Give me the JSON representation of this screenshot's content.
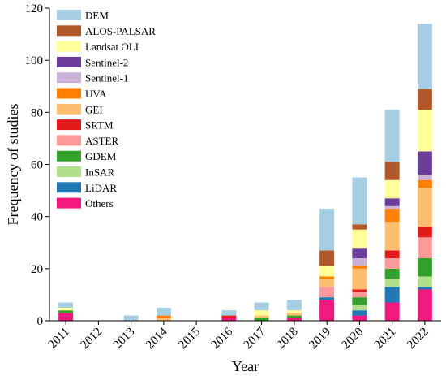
{
  "chart_data": {
    "type": "bar",
    "stacked": true,
    "xlabel": "Year",
    "ylabel": "Frequency of studies",
    "ylim": [
      0,
      120
    ],
    "yticks": [
      0,
      20,
      40,
      60,
      80,
      100,
      120
    ],
    "categories": [
      "2011",
      "2012",
      "2013",
      "2014",
      "2015",
      "2016",
      "2017",
      "2018",
      "2019",
      "2020",
      "2021",
      "2022"
    ],
    "legend_position": "top-left",
    "series": [
      {
        "name": "Others",
        "color": "#f2187d",
        "values": [
          3,
          0,
          0,
          0,
          0,
          1,
          0,
          1,
          8,
          2,
          7,
          12
        ]
      },
      {
        "name": "LiDAR",
        "color": "#1f78b4",
        "values": [
          0,
          0,
          0,
          0,
          0,
          0,
          0,
          0,
          1,
          2,
          6,
          1
        ]
      },
      {
        "name": "InSAR",
        "color": "#b2df8a",
        "values": [
          0,
          0,
          0,
          0,
          0,
          0,
          0,
          0,
          0,
          2,
          3,
          4
        ]
      },
      {
        "name": "GDEM",
        "color": "#33a02c",
        "values": [
          1,
          0,
          0,
          0,
          0,
          0,
          1,
          1,
          0,
          3,
          4,
          7
        ]
      },
      {
        "name": "ASTER",
        "color": "#fb9a99",
        "values": [
          0,
          0,
          0,
          0,
          0,
          0,
          0,
          0,
          4,
          2,
          4,
          8
        ]
      },
      {
        "name": "SRTM",
        "color": "#e31a1c",
        "values": [
          0,
          0,
          0,
          0,
          0,
          1,
          0,
          0,
          0,
          1,
          3,
          4
        ]
      },
      {
        "name": "GEI",
        "color": "#fdbf6f",
        "values": [
          0,
          0,
          0,
          1,
          0,
          0,
          1,
          1,
          3,
          8,
          11,
          15
        ]
      },
      {
        "name": "UVA",
        "color": "#ff7f00",
        "values": [
          0,
          0,
          0,
          1,
          0,
          0,
          0,
          0,
          1,
          1,
          5,
          3
        ]
      },
      {
        "name": "Sentinel-1",
        "color": "#cab2d6",
        "values": [
          0,
          0,
          0,
          0,
          0,
          0,
          0,
          0,
          0,
          3,
          1,
          2
        ]
      },
      {
        "name": "Sentinel-2",
        "color": "#6a3d9a",
        "values": [
          0,
          0,
          0,
          0,
          0,
          0,
          0,
          0,
          0,
          4,
          3,
          9
        ]
      },
      {
        "name": "Landsat OLI",
        "color": "#ffff99",
        "values": [
          1,
          0,
          0,
          0,
          0,
          0,
          2,
          1,
          4,
          7,
          7,
          16
        ]
      },
      {
        "name": "ALOS-PALSAR",
        "color": "#b15928",
        "values": [
          0,
          0,
          0,
          0,
          0,
          0,
          0,
          0,
          6,
          2,
          7,
          8
        ]
      },
      {
        "name": "DEM",
        "color": "#a6cee3",
        "values": [
          2,
          0,
          2,
          3,
          0,
          2,
          3,
          4,
          16,
          18,
          20,
          25
        ]
      }
    ]
  }
}
